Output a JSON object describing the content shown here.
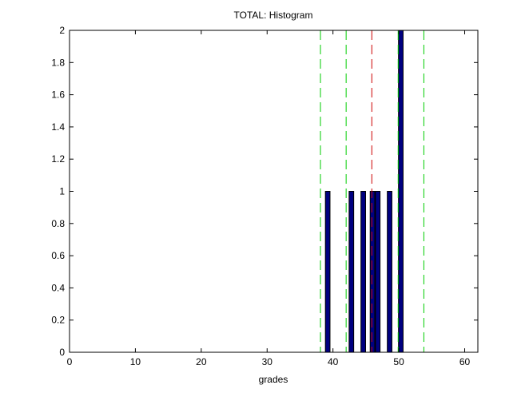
{
  "chart_data": {
    "type": "bar",
    "title": "TOTAL: Histogram",
    "xlabel": "grades",
    "ylabel": "",
    "xlim": [
      0,
      62
    ],
    "ylim": [
      0,
      2
    ],
    "xticks": [
      "0",
      "10",
      "20",
      "30",
      "40",
      "50",
      "60"
    ],
    "yticks": [
      "0",
      "0.2",
      "0.4",
      "0.6",
      "0.8",
      "1",
      "1.2",
      "1.4",
      "1.6",
      "1.8",
      "2"
    ],
    "grid": false,
    "bars": [
      {
        "x": 39.2,
        "value": 1
      },
      {
        "x": 42.8,
        "value": 1
      },
      {
        "x": 44.6,
        "value": 1
      },
      {
        "x": 46.0,
        "value": 1
      },
      {
        "x": 46.8,
        "value": 1
      },
      {
        "x": 48.6,
        "value": 1
      },
      {
        "x": 50.3,
        "value": 2
      }
    ],
    "reference_lines": [
      {
        "x": 38.1,
        "color": "#00cc00",
        "style": "dashed"
      },
      {
        "x": 42.0,
        "color": "#00cc00",
        "style": "dashed"
      },
      {
        "x": 45.9,
        "color": "#cc0000",
        "style": "dashed"
      },
      {
        "x": 49.9,
        "color": "#00cc00",
        "style": "dashed"
      },
      {
        "x": 50.1,
        "color": "#000080",
        "style": "dashed"
      },
      {
        "x": 53.8,
        "color": "#00cc00",
        "style": "dashed"
      }
    ],
    "bar_color": "#000080",
    "bar_edge_color": "#000000"
  }
}
